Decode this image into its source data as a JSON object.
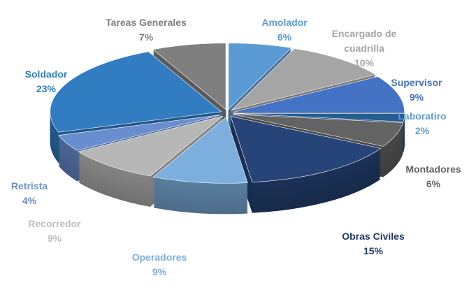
{
  "chart_data": {
    "type": "pie",
    "style": "3d-exploded",
    "legend": "none",
    "data_labels": "category and percent",
    "slices": [
      {
        "label": "Amolador",
        "value": 6,
        "pct": "6%",
        "color": "#5b9bd5"
      },
      {
        "label": "Encargado de cuadrilla",
        "label_lines": [
          "Encargado de",
          "cuadrilla"
        ],
        "value": 10,
        "pct": "10%",
        "color": "#a5a5a5"
      },
      {
        "label": "Supervisor",
        "value": 9,
        "pct": "9%",
        "color": "#4472c4"
      },
      {
        "label": "Laboratiro",
        "value": 2,
        "pct": "2%",
        "color": "#255e91"
      },
      {
        "label": "Montadores",
        "value": 6,
        "pct": "6%",
        "color": "#636363"
      },
      {
        "label": "Obras Civiles",
        "value": 15,
        "pct": "15%",
        "color": "#264478"
      },
      {
        "label": "Operadores",
        "value": 9,
        "pct": "9%",
        "color": "#7cafdd"
      },
      {
        "label": "Recorredor",
        "value": 9,
        "pct": "9%",
        "color": "#b7b7b7"
      },
      {
        "label": "Retrista",
        "value": 4,
        "pct": "4%",
        "color": "#698ed0"
      },
      {
        "label": "Soldador",
        "value": 23,
        "pct": "23%",
        "color": "#327dc2"
      },
      {
        "label": "Tareas Generales",
        "value": 7,
        "pct": "7%",
        "color": "#7f7f7f"
      }
    ]
  }
}
